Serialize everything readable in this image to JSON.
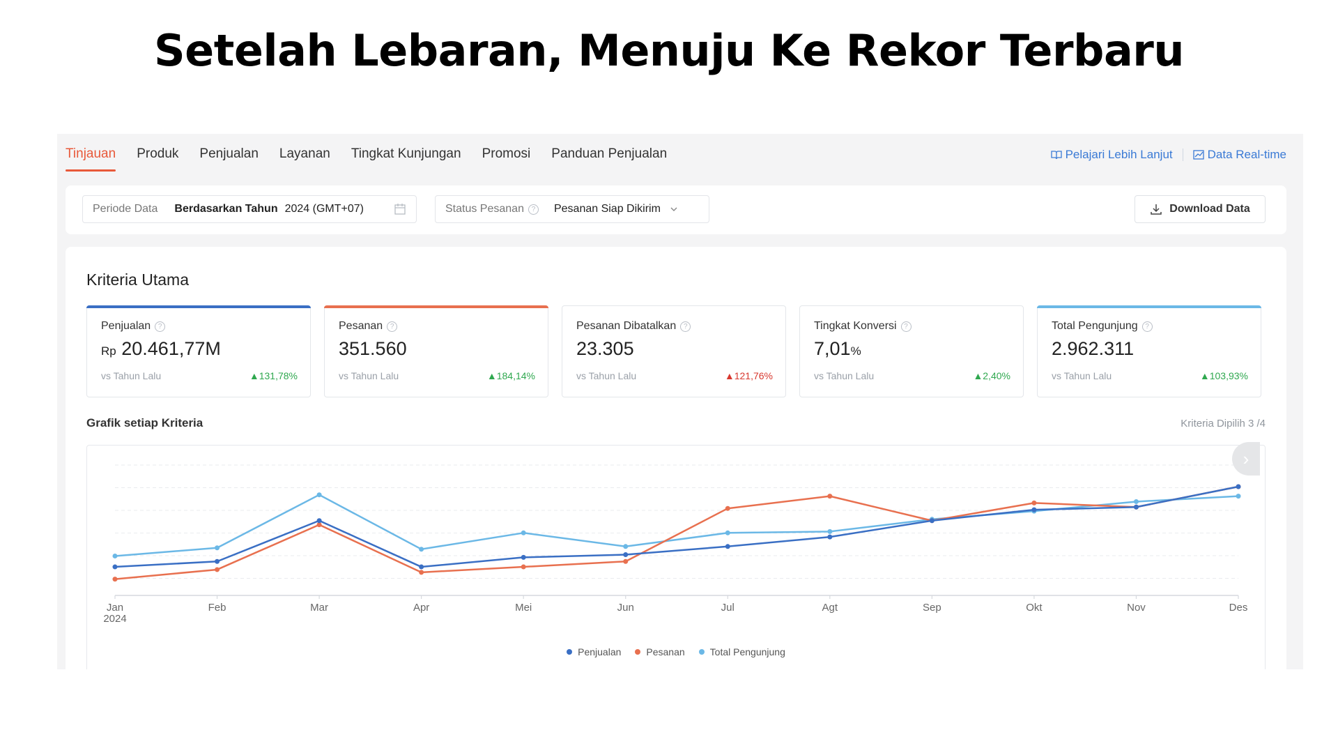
{
  "headline": "Setelah Lebaran, Menuju Ke Rekor Terbaru",
  "tabs": [
    {
      "label": "Tinjauan",
      "active": true
    },
    {
      "label": "Produk"
    },
    {
      "label": "Penjualan"
    },
    {
      "label": "Layanan"
    },
    {
      "label": "Tingkat Kunjungan"
    },
    {
      "label": "Promosi"
    },
    {
      "label": "Panduan Penjualan"
    }
  ],
  "top_links": {
    "learn_more": "Pelajari Lebih Lanjut",
    "realtime": "Data Real-time"
  },
  "filters": {
    "period_label": "Periode Data",
    "period_mode": "Berdasarkan Tahun",
    "period_value": "2024 (GMT+07)",
    "status_label": "Status Pesanan",
    "status_value": "Pesanan Siap Dikirim",
    "download_label": "Download Data"
  },
  "panel": {
    "title": "Kriteria Utama",
    "graph_title": "Grafik setiap Kriteria",
    "selected_info": "Kriteria Dipilih 3 /4"
  },
  "cards": [
    {
      "title": "Penjualan",
      "prefix": "Rp",
      "value": "20.461,77M",
      "unit": "",
      "vs": "vs Tahun Lalu",
      "change": "131,78%",
      "direction": "up",
      "color": "#3a6fc4"
    },
    {
      "title": "Pesanan",
      "prefix": "",
      "value": "351.560",
      "unit": "",
      "vs": "vs Tahun Lalu",
      "change": "184,14%",
      "direction": "up",
      "color": "#e8704f"
    },
    {
      "title": "Pesanan Dibatalkan",
      "prefix": "",
      "value": "23.305",
      "unit": "",
      "vs": "vs Tahun Lalu",
      "change": "121,76%",
      "direction": "up-red",
      "color": ""
    },
    {
      "title": "Tingkat Konversi",
      "prefix": "",
      "value": "7,01",
      "unit": "%",
      "vs": "vs Tahun Lalu",
      "change": "2,40%",
      "direction": "up",
      "color": ""
    },
    {
      "title": "Total Pengunjung",
      "prefix": "",
      "value": "2.962.311",
      "unit": "",
      "vs": "vs Tahun Lalu",
      "change": "103,93%",
      "direction": "up",
      "color": "#6bb8e6"
    }
  ],
  "icons": {
    "calendar": "calendar-icon",
    "help": "question-icon",
    "chevron": "chevron-down-icon",
    "download": "download-icon",
    "book": "book-icon",
    "chart": "chart-icon",
    "next": "chevron-right-icon"
  },
  "chart_data": {
    "type": "line",
    "categories": [
      "Jan",
      "Feb",
      "Mar",
      "Apr",
      "Mei",
      "Jun",
      "Jul",
      "Agt",
      "Sep",
      "Okt",
      "Nov",
      "Des"
    ],
    "year_label": "2024",
    "ylim": [
      0,
      100
    ],
    "grid": true,
    "legend": "bottom-center",
    "series": [
      {
        "name": "Penjualan",
        "color": "#3a6fc4",
        "values": [
          21,
          25,
          55,
          21,
          28,
          30,
          36,
          43,
          55,
          63,
          65,
          80
        ]
      },
      {
        "name": "Pesanan",
        "color": "#e8704f",
        "values": [
          12,
          19,
          52,
          17,
          21,
          25,
          64,
          73,
          55,
          68,
          65,
          80
        ]
      },
      {
        "name": "Total Pengunjung",
        "color": "#6bb8e6",
        "values": [
          29,
          35,
          74,
          34,
          46,
          36,
          46,
          47,
          56,
          62,
          69,
          73
        ]
      }
    ]
  }
}
